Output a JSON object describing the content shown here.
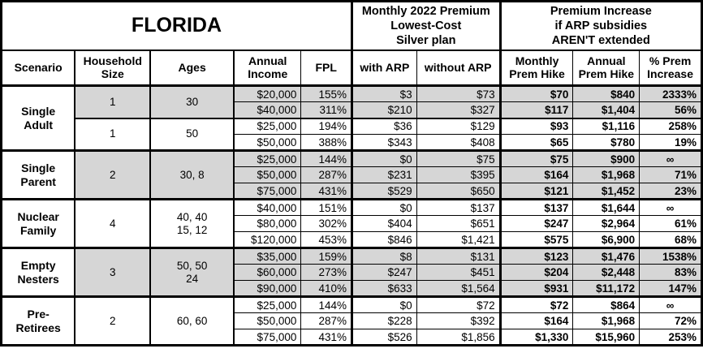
{
  "banners": {
    "state": "FLORIDA",
    "premium": "Monthly 2022 Premium\nLowest-Cost\nSilver plan",
    "increase": "Premium Increase\nif ARP subsidies\nAREN'T extended"
  },
  "columns": {
    "scenario": "Scenario",
    "household_size": "Household\nSize",
    "ages": "Ages",
    "annual_income": "Annual\nIncome",
    "fpl": "FPL",
    "with_arp": "with ARP",
    "without_arp": "without ARP",
    "monthly_hike": "Monthly\nPrem Hike",
    "annual_hike": "Annual\nPrem Hike",
    "pct_increase": "% Prem\nIncrease"
  },
  "colors": {
    "shaded_cell": "#d6d6d6",
    "border": "#000000",
    "background": "#ffffff"
  },
  "groups": [
    {
      "scenario": "Single\nAdult",
      "subgroups": [
        {
          "household_size": "1",
          "ages": "30",
          "shaded": true,
          "rows": [
            {
              "income": "$20,000",
              "fpl": "155%",
              "with_arp": "$3",
              "without_arp": "$73",
              "monthly_hike": "$70",
              "annual_hike": "$840",
              "pct_increase": "2333%"
            },
            {
              "income": "$40,000",
              "fpl": "311%",
              "with_arp": "$210",
              "without_arp": "$327",
              "monthly_hike": "$117",
              "annual_hike": "$1,404",
              "pct_increase": "56%"
            }
          ]
        },
        {
          "household_size": "1",
          "ages": "50",
          "shaded": false,
          "rows": [
            {
              "income": "$25,000",
              "fpl": "194%",
              "with_arp": "$36",
              "without_arp": "$129",
              "monthly_hike": "$93",
              "annual_hike": "$1,116",
              "pct_increase": "258%"
            },
            {
              "income": "$50,000",
              "fpl": "388%",
              "with_arp": "$343",
              "without_arp": "$408",
              "monthly_hike": "$65",
              "annual_hike": "$780",
              "pct_increase": "19%"
            }
          ]
        }
      ]
    },
    {
      "scenario": "Single\nParent",
      "subgroups": [
        {
          "household_size": "2",
          "ages": "30, 8",
          "shaded": true,
          "rows": [
            {
              "income": "$25,000",
              "fpl": "144%",
              "with_arp": "$0",
              "without_arp": "$75",
              "monthly_hike": "$75",
              "annual_hike": "$900",
              "pct_increase": "∞"
            },
            {
              "income": "$50,000",
              "fpl": "287%",
              "with_arp": "$231",
              "without_arp": "$395",
              "monthly_hike": "$164",
              "annual_hike": "$1,968",
              "pct_increase": "71%"
            },
            {
              "income": "$75,000",
              "fpl": "431%",
              "with_arp": "$529",
              "without_arp": "$650",
              "monthly_hike": "$121",
              "annual_hike": "$1,452",
              "pct_increase": "23%"
            }
          ]
        }
      ]
    },
    {
      "scenario": "Nuclear\nFamily",
      "subgroups": [
        {
          "household_size": "4",
          "ages": "40, 40\n15, 12",
          "shaded": false,
          "rows": [
            {
              "income": "$40,000",
              "fpl": "151%",
              "with_arp": "$0",
              "without_arp": "$137",
              "monthly_hike": "$137",
              "annual_hike": "$1,644",
              "pct_increase": "∞"
            },
            {
              "income": "$80,000",
              "fpl": "302%",
              "with_arp": "$404",
              "without_arp": "$651",
              "monthly_hike": "$247",
              "annual_hike": "$2,964",
              "pct_increase": "61%"
            },
            {
              "income": "$120,000",
              "fpl": "453%",
              "with_arp": "$846",
              "without_arp": "$1,421",
              "monthly_hike": "$575",
              "annual_hike": "$6,900",
              "pct_increase": "68%"
            }
          ]
        }
      ]
    },
    {
      "scenario": "Empty\nNesters",
      "subgroups": [
        {
          "household_size": "3",
          "ages": "50, 50\n24",
          "shaded": true,
          "rows": [
            {
              "income": "$35,000",
              "fpl": "159%",
              "with_arp": "$8",
              "without_arp": "$131",
              "monthly_hike": "$123",
              "annual_hike": "$1,476",
              "pct_increase": "1538%"
            },
            {
              "income": "$60,000",
              "fpl": "273%",
              "with_arp": "$247",
              "without_arp": "$451",
              "monthly_hike": "$204",
              "annual_hike": "$2,448",
              "pct_increase": "83%"
            },
            {
              "income": "$90,000",
              "fpl": "410%",
              "with_arp": "$633",
              "without_arp": "$1,564",
              "monthly_hike": "$931",
              "annual_hike": "$11,172",
              "pct_increase": "147%"
            }
          ]
        }
      ]
    },
    {
      "scenario": "Pre-\nRetirees",
      "subgroups": [
        {
          "household_size": "2",
          "ages": "60, 60",
          "shaded": false,
          "rows": [
            {
              "income": "$25,000",
              "fpl": "144%",
              "with_arp": "$0",
              "without_arp": "$72",
              "monthly_hike": "$72",
              "annual_hike": "$864",
              "pct_increase": "∞"
            },
            {
              "income": "$50,000",
              "fpl": "287%",
              "with_arp": "$228",
              "without_arp": "$392",
              "monthly_hike": "$164",
              "annual_hike": "$1,968",
              "pct_increase": "72%"
            },
            {
              "income": "$75,000",
              "fpl": "431%",
              "with_arp": "$526",
              "without_arp": "$1,856",
              "monthly_hike": "$1,330",
              "annual_hike": "$15,960",
              "pct_increase": "253%"
            }
          ]
        }
      ]
    }
  ]
}
